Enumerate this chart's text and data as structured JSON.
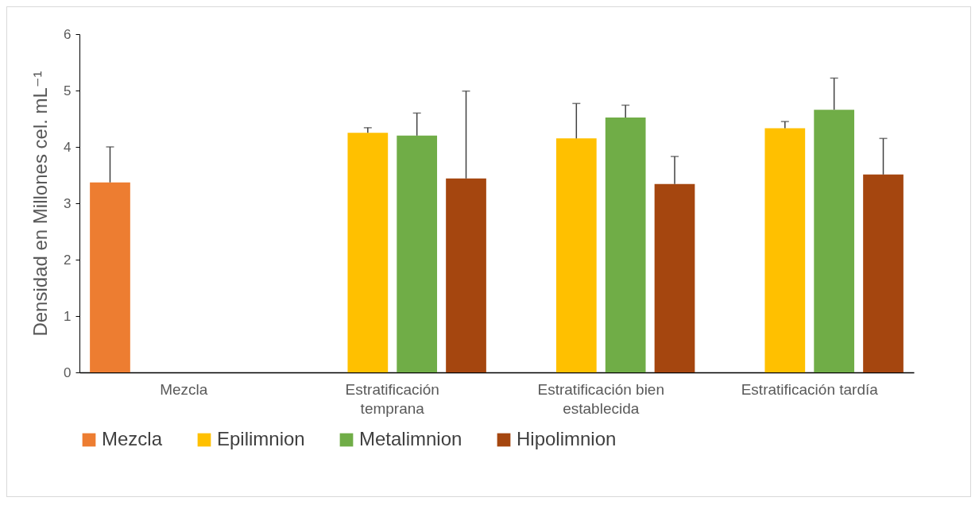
{
  "chart_data": {
    "type": "bar",
    "ylabel": "Densidad en Millones cel. mL⁻¹",
    "categories": [
      "Mezcla",
      "Estratificación temprana",
      "Estratificación bien establecida",
      "Estratificación tardía"
    ],
    "series": [
      {
        "name": "Mezcla",
        "color": "#ed7d31",
        "values": [
          3.37,
          null,
          null,
          null
        ],
        "errors": [
          [
            3.37,
            4.0
          ],
          null,
          null,
          null
        ]
      },
      {
        "name": "Epilimnion",
        "color": "#ffc000",
        "values": [
          null,
          4.25,
          4.15,
          4.33
        ],
        "errors": [
          null,
          [
            4.25,
            4.34
          ],
          [
            4.15,
            4.77
          ],
          [
            4.33,
            4.45
          ]
        ]
      },
      {
        "name": "Metalimnion",
        "color": "#70ad47",
        "values": [
          null,
          4.2,
          4.52,
          4.66
        ],
        "errors": [
          null,
          [
            4.2,
            4.6
          ],
          [
            4.52,
            4.74
          ],
          [
            4.66,
            5.22
          ]
        ]
      },
      {
        "name": "Hipolimnion",
        "color": "#a5460f",
        "values": [
          null,
          3.44,
          3.34,
          3.51
        ],
        "errors": [
          null,
          [
            3.44,
            4.99
          ],
          [
            3.34,
            3.83
          ],
          [
            3.51,
            4.15
          ]
        ]
      }
    ],
    "ylim": [
      0,
      6
    ],
    "yticks": [
      0,
      1,
      2,
      3,
      4,
      5,
      6
    ],
    "grid": false,
    "legend": "bottom"
  }
}
